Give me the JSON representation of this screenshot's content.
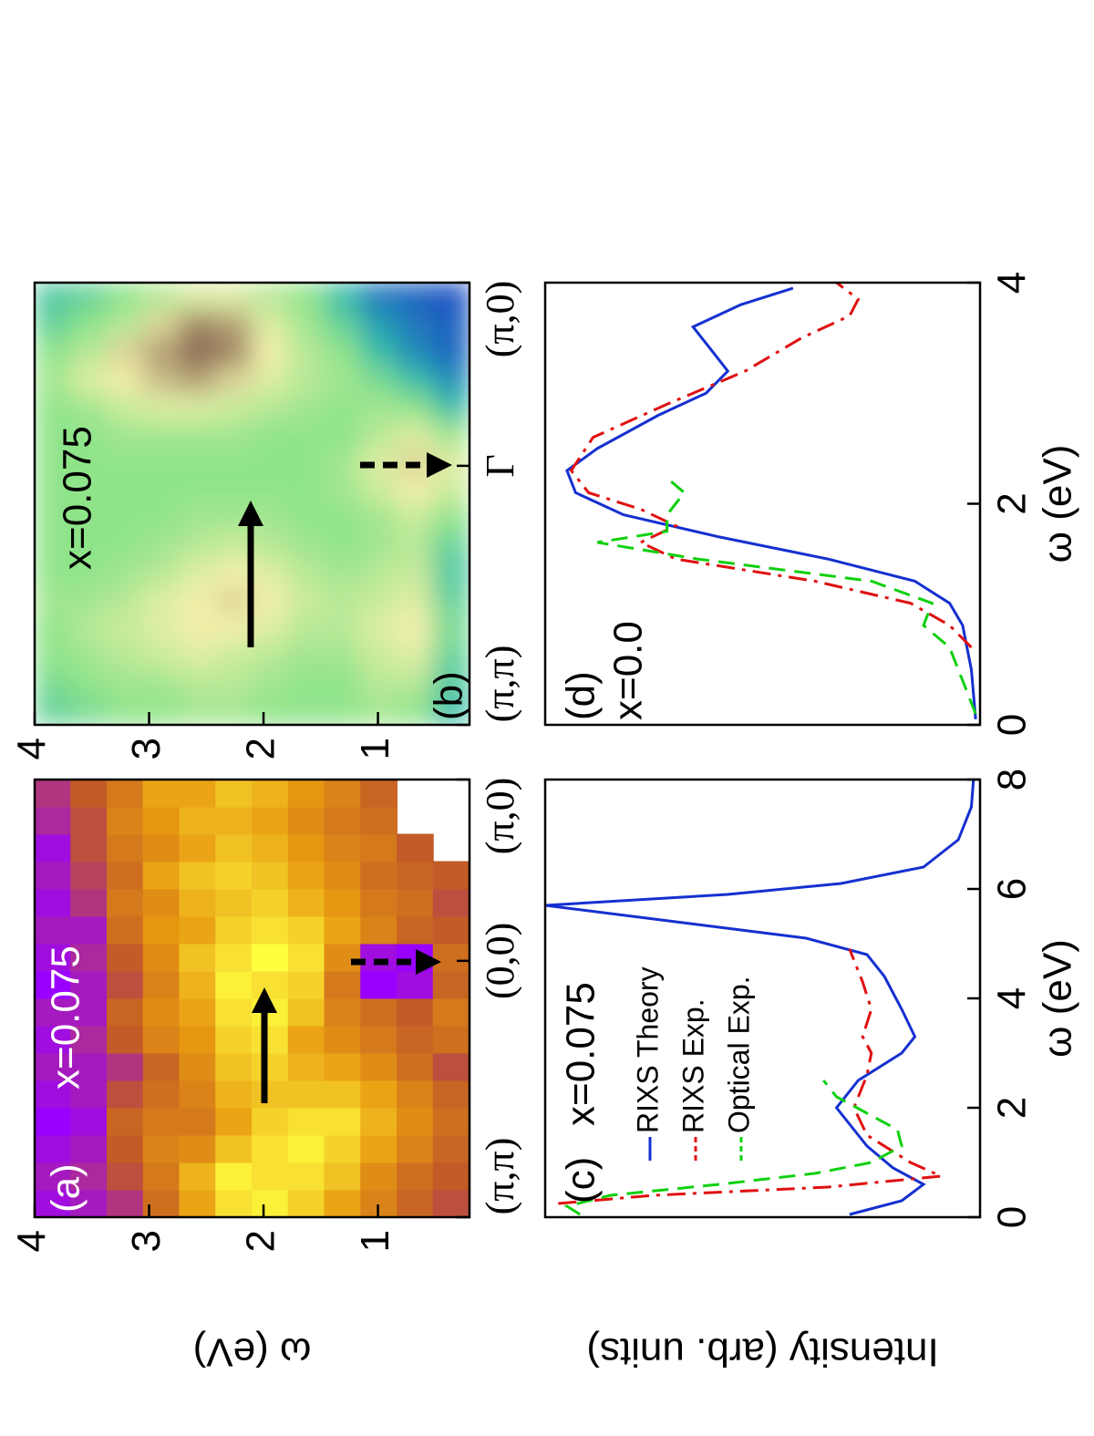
{
  "chart_data": [
    {
      "type": "heatmap",
      "panel_label": "(a)",
      "annotation": "x=0.075",
      "ylabel": "ω (eV)",
      "xlim": [
        0,
        2.414
      ],
      "xticks": [
        {
          "value": 0,
          "label": "(π,π)"
        },
        {
          "value": 1.414,
          "label": "(0,0)"
        },
        {
          "value": 2.414,
          "label": "(π,0)"
        }
      ],
      "ylim": [
        0.2,
        4
      ],
      "yticks": [
        1,
        2,
        3,
        4
      ],
      "colors": [
        "#9a00ff",
        "#c05828",
        "#e89a10",
        "#ffff40"
      ],
      "z": [
        [
          0.05,
          0.1,
          0.05,
          0.0,
          0.05,
          0.1,
          0.05,
          0.1,
          0.0,
          0.05,
          0.1,
          0.05,
          0.1,
          0.05,
          0.15,
          0.2
        ],
        [
          0.1,
          0.15,
          0.1,
          0.05,
          0.1,
          0.1,
          0.15,
          0.1,
          0.1,
          0.15,
          0.1,
          0.2,
          0.25,
          0.3,
          0.3,
          0.35
        ],
        [
          0.2,
          0.3,
          0.35,
          0.4,
          0.3,
          0.2,
          0.35,
          0.4,
          0.3,
          0.35,
          0.45,
          0.5,
          0.45,
          0.5,
          0.55,
          0.5
        ],
        [
          0.45,
          0.5,
          0.55,
          0.5,
          0.45,
          0.4,
          0.55,
          0.6,
          0.55,
          0.6,
          0.65,
          0.6,
          0.7,
          0.6,
          0.65,
          0.7
        ],
        [
          0.7,
          0.75,
          0.6,
          0.5,
          0.55,
          0.6,
          0.65,
          0.7,
          0.75,
          0.8,
          0.7,
          0.75,
          0.8,
          0.7,
          0.75,
          0.7
        ],
        [
          0.9,
          0.95,
          0.8,
          0.7,
          0.75,
          0.8,
          0.85,
          0.9,
          0.95,
          0.9,
          0.85,
          0.8,
          0.85,
          0.8,
          0.75,
          0.8
        ],
        [
          0.95,
          0.9,
          0.9,
          0.85,
          0.8,
          0.85,
          0.9,
          0.95,
          0.9,
          1.0,
          0.9,
          0.85,
          0.8,
          0.75,
          0.7,
          0.75
        ],
        [
          0.85,
          0.9,
          0.95,
          0.9,
          0.8,
          0.75,
          0.7,
          0.8,
          0.85,
          0.9,
          0.85,
          0.75,
          0.7,
          0.65,
          0.6,
          0.65
        ],
        [
          0.7,
          0.8,
          0.85,
          0.9,
          0.8,
          0.7,
          0.6,
          0.55,
          0.5,
          0.6,
          0.7,
          0.65,
          0.6,
          0.55,
          0.5,
          0.55
        ],
        [
          0.55,
          0.6,
          0.7,
          0.75,
          0.7,
          0.6,
          0.5,
          0.45,
          0.0,
          0.05,
          0.55,
          0.5,
          0.45,
          0.5,
          0.45,
          0.4
        ],
        [
          0.4,
          0.45,
          0.55,
          0.6,
          0.55,
          0.45,
          0.4,
          0.35,
          0.05,
          0.0,
          0.4,
          0.45,
          0.4,
          0.35,
          null,
          null
        ],
        [
          0.3,
          0.35,
          0.4,
          0.45,
          0.4,
          0.3,
          0.45,
          0.5,
          0.4,
          0.45,
          0.35,
          0.3,
          0.35,
          null,
          null,
          null
        ]
      ]
    },
    {
      "type": "heatmap",
      "panel_label": "(b)",
      "annotation": "x=0.075",
      "smooth": true,
      "xlim": [
        0,
        2.414
      ],
      "xticks": [
        {
          "value": 0,
          "label": "(π,π)"
        },
        {
          "value": 1.414,
          "label": "Γ"
        },
        {
          "value": 2.414,
          "label": "(π,0)"
        }
      ],
      "ylim": [
        0.2,
        4
      ],
      "yticks": [
        1,
        2,
        3,
        4
      ],
      "colors": [
        "#1e4fc4",
        "#22b4b0",
        "#8fe48a",
        "#f2efaa",
        "#8a6a52"
      ],
      "z": [
        [
          0.4,
          0.45,
          0.5,
          0.5,
          0.55,
          0.5,
          0.5,
          0.5,
          0.5,
          0.5,
          0.5,
          0.5,
          0.55,
          0.5,
          0.4,
          0.35
        ],
        [
          0.45,
          0.5,
          0.55,
          0.6,
          0.55,
          0.5,
          0.5,
          0.5,
          0.5,
          0.5,
          0.5,
          0.55,
          0.7,
          0.6,
          0.5,
          0.4
        ],
        [
          0.5,
          0.55,
          0.6,
          0.65,
          0.6,
          0.55,
          0.5,
          0.5,
          0.5,
          0.5,
          0.55,
          0.65,
          0.75,
          0.8,
          0.6,
          0.5
        ],
        [
          0.5,
          0.55,
          0.65,
          0.7,
          0.7,
          0.6,
          0.55,
          0.5,
          0.5,
          0.5,
          0.55,
          0.7,
          0.85,
          0.9,
          0.8,
          0.6
        ],
        [
          0.55,
          0.6,
          0.7,
          0.75,
          0.75,
          0.7,
          0.6,
          0.55,
          0.5,
          0.5,
          0.55,
          0.7,
          0.9,
          1.0,
          0.95,
          0.7
        ],
        [
          0.55,
          0.6,
          0.65,
          0.75,
          0.8,
          0.75,
          0.65,
          0.55,
          0.5,
          0.5,
          0.55,
          0.65,
          0.8,
          0.95,
          0.9,
          0.7
        ],
        [
          0.5,
          0.55,
          0.6,
          0.7,
          0.75,
          0.7,
          0.6,
          0.55,
          0.5,
          0.5,
          0.5,
          0.6,
          0.7,
          0.75,
          0.7,
          0.6
        ],
        [
          0.5,
          0.5,
          0.55,
          0.6,
          0.65,
          0.6,
          0.55,
          0.5,
          0.5,
          0.5,
          0.5,
          0.55,
          0.6,
          0.6,
          0.55,
          0.5
        ],
        [
          0.5,
          0.5,
          0.55,
          0.6,
          0.6,
          0.55,
          0.5,
          0.5,
          0.55,
          0.55,
          0.5,
          0.5,
          0.55,
          0.5,
          0.4,
          0.3
        ],
        [
          0.55,
          0.6,
          0.65,
          0.7,
          0.65,
          0.6,
          0.55,
          0.55,
          0.65,
          0.7,
          0.6,
          0.55,
          0.45,
          0.3,
          0.2,
          0.1
        ],
        [
          0.5,
          0.6,
          0.7,
          0.75,
          0.7,
          0.65,
          0.6,
          0.65,
          0.75,
          0.8,
          0.7,
          0.5,
          0.3,
          0.15,
          0.1,
          0.05
        ],
        [
          0.3,
          0.35,
          0.4,
          0.45,
          0.4,
          0.35,
          0.4,
          0.5,
          0.65,
          0.7,
          0.55,
          0.3,
          0.15,
          0.05,
          0.05,
          0.0
        ]
      ]
    },
    {
      "type": "line",
      "panel_label": "(c)",
      "annotation": "x=0.075",
      "ylabel": "Intensity (arb. units)",
      "xlabel": "ω (eV)",
      "xlim": [
        0,
        8
      ],
      "xticks": [
        0,
        2,
        4,
        6,
        8
      ],
      "ylim": [
        0,
        1
      ],
      "legend": "upper left",
      "series": [
        {
          "name": "RIXS Theory",
          "color": "#1530d0",
          "dash": "solid",
          "x": [
            0.05,
            0.3,
            0.6,
            0.9,
            1.3,
            1.7,
            2.0,
            2.5,
            3.0,
            3.3,
            3.8,
            4.4,
            4.8,
            5.1,
            5.4,
            5.7,
            5.9,
            6.1,
            6.4,
            6.9,
            7.5,
            8.0
          ],
          "values": [
            0.3,
            0.18,
            0.13,
            0.2,
            0.26,
            0.3,
            0.33,
            0.28,
            0.18,
            0.15,
            0.18,
            0.22,
            0.26,
            0.4,
            0.7,
            1.0,
            0.58,
            0.32,
            0.13,
            0.05,
            0.02,
            0.015
          ]
        },
        {
          "name": "RIXS Exp.",
          "color": "#e01010",
          "dash": "dashdot",
          "x": [
            0.25,
            0.4,
            0.55,
            0.75,
            1.0,
            1.5,
            2.0,
            2.6,
            3.0,
            3.3,
            3.8,
            4.3,
            4.9
          ],
          "values": [
            0.97,
            0.75,
            0.35,
            0.09,
            0.16,
            0.26,
            0.29,
            0.26,
            0.25,
            0.27,
            0.25,
            0.27,
            0.3
          ]
        },
        {
          "name": "Optical Exp.",
          "color": "#10d010",
          "dash": "dashed",
          "x": [
            0.05,
            0.2,
            0.4,
            0.6,
            0.8,
            1.0,
            1.3,
            1.6,
            1.9,
            2.2,
            2.5
          ],
          "values": [
            0.92,
            0.95,
            0.85,
            0.6,
            0.38,
            0.25,
            0.18,
            0.19,
            0.26,
            0.33,
            0.36
          ]
        }
      ]
    },
    {
      "type": "line",
      "panel_label": "(d)",
      "annotation": "x=0.0",
      "xlabel": "ω (eV)",
      "xlim": [
        0,
        4
      ],
      "xticks": [
        0,
        2,
        4
      ],
      "ylim": [
        0,
        1
      ],
      "series": [
        {
          "color": "#1530d0",
          "dash": "solid",
          "x": [
            0.05,
            0.5,
            0.9,
            1.1,
            1.3,
            1.5,
            1.7,
            1.9,
            2.1,
            2.3,
            2.5,
            2.8,
            3.0,
            3.2,
            3.4,
            3.6,
            3.8,
            3.95
          ],
          "values": [
            0.01,
            0.02,
            0.04,
            0.07,
            0.15,
            0.35,
            0.6,
            0.82,
            0.93,
            0.95,
            0.88,
            0.74,
            0.63,
            0.58,
            0.62,
            0.66,
            0.55,
            0.43
          ]
        },
        {
          "color": "#e01010",
          "dash": "dashdot",
          "x": [
            0.7,
            0.9,
            1.1,
            1.3,
            1.5,
            1.65,
            1.8,
            1.95,
            2.1,
            2.3,
            2.6,
            2.9,
            3.2,
            3.5,
            3.7,
            3.85,
            4.0
          ],
          "values": [
            0.02,
            0.07,
            0.16,
            0.38,
            0.7,
            0.78,
            0.7,
            0.78,
            0.9,
            0.94,
            0.89,
            0.72,
            0.54,
            0.41,
            0.3,
            0.28,
            0.33
          ]
        },
        {
          "color": "#10d010",
          "dash": "dashed",
          "x": [
            0.1,
            0.4,
            0.7,
            0.9,
            1.1,
            1.3,
            1.5,
            1.65,
            1.75,
            1.9,
            2.1,
            2.2
          ],
          "values": [
            0.01,
            0.04,
            0.07,
            0.13,
            0.11,
            0.25,
            0.65,
            0.88,
            0.72,
            0.72,
            0.68,
            0.71
          ]
        }
      ]
    }
  ]
}
